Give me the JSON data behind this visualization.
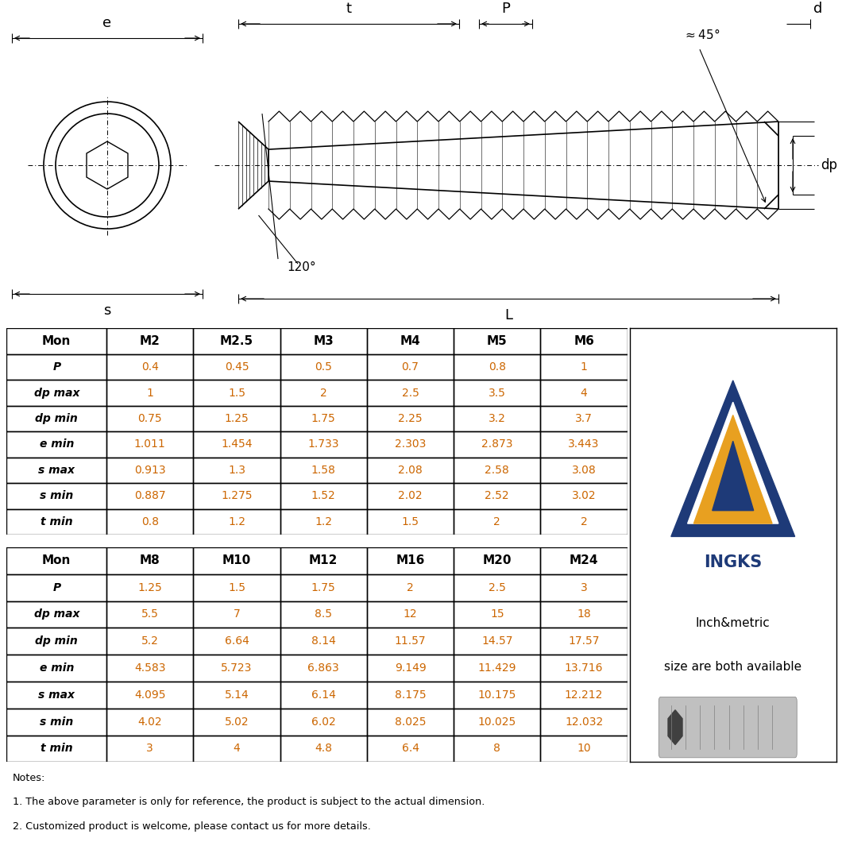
{
  "table1_headers": [
    "Mon",
    "M2",
    "M2.5",
    "M3",
    "M4",
    "M5",
    "M6"
  ],
  "table1_rows": [
    [
      "P",
      "0.4",
      "0.45",
      "0.5",
      "0.7",
      "0.8",
      "1"
    ],
    [
      "dp max",
      "1",
      "1.5",
      "2",
      "2.5",
      "3.5",
      "4"
    ],
    [
      "dp min",
      "0.75",
      "1.25",
      "1.75",
      "2.25",
      "3.2",
      "3.7"
    ],
    [
      "e min",
      "1.011",
      "1.454",
      "1.733",
      "2.303",
      "2.873",
      "3.443"
    ],
    [
      "s max",
      "0.913",
      "1.3",
      "1.58",
      "2.08",
      "2.58",
      "3.08"
    ],
    [
      "s min",
      "0.887",
      "1.275",
      "1.52",
      "2.02",
      "2.52",
      "3.02"
    ],
    [
      "t min",
      "0.8",
      "1.2",
      "1.2",
      "1.5",
      "2",
      "2"
    ]
  ],
  "table2_headers": [
    "Mon",
    "M8",
    "M10",
    "M12",
    "M16",
    "M20",
    "M24"
  ],
  "table2_rows": [
    [
      "P",
      "1.25",
      "1.5",
      "1.75",
      "2",
      "2.5",
      "3"
    ],
    [
      "dp max",
      "5.5",
      "7",
      "8.5",
      "12",
      "15",
      "18"
    ],
    [
      "dp min",
      "5.2",
      "6.64",
      "8.14",
      "11.57",
      "14.57",
      "17.57"
    ],
    [
      "e min",
      "4.583",
      "5.723",
      "6.863",
      "9.149",
      "11.429",
      "13.716"
    ],
    [
      "s max",
      "4.095",
      "5.14",
      "6.14",
      "8.175",
      "10.175",
      "12.212"
    ],
    [
      "s min",
      "4.02",
      "5.02",
      "6.02",
      "8.025",
      "10.025",
      "12.032"
    ],
    [
      "t min",
      "3",
      "4",
      "4.8",
      "6.4",
      "8",
      "10"
    ]
  ],
  "notes": [
    "Notes:",
    "1. The above parameter is only for reference, the product is subject to the actual dimension.",
    "2. Customized product is welcome, please contact us for more details."
  ],
  "data_color": "#cc6600",
  "bg_color": "#ffffff",
  "logo_blue": "#1e3a78",
  "logo_orange": "#e8a020",
  "logo_text": "INGKS",
  "logo_line1": "Inch&metric",
  "logo_line2": "size are both available"
}
